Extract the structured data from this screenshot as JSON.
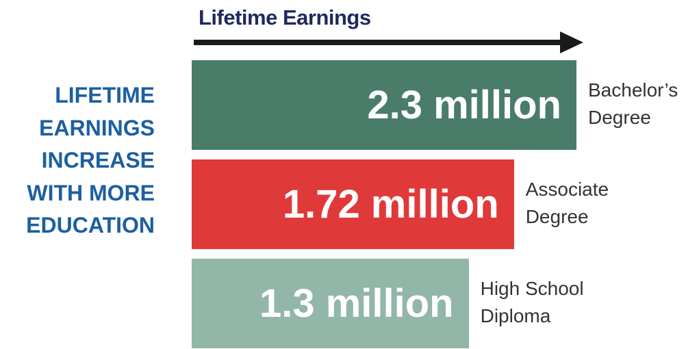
{
  "chart_data": {
    "type": "bar",
    "orientation": "horizontal",
    "title": "Lifetime Earnings",
    "annotation": "LIFETIME EARNINGS INCREASE WITH MORE EDUCATION",
    "categories": [
      "Bachelor’s Degree",
      "Associate Degree",
      "High School Diploma"
    ],
    "values": [
      2.3,
      1.72,
      1.3
    ],
    "value_labels": [
      "2.3 million",
      "1.72 million",
      "1.3 million"
    ],
    "colors": [
      "#4a7c6a",
      "#e0393a",
      "#92b6a7"
    ]
  }
}
